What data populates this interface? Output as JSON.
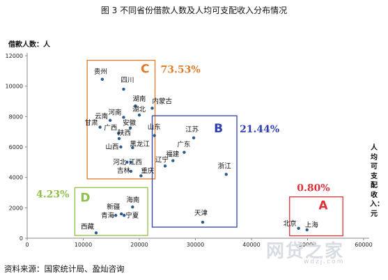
{
  "page": {
    "title": "图 3  不同省份借款人数及人均可支配收入分布情况",
    "source": "资料来源：国家统计局、盈灿咨询",
    "watermark": "网贷之家",
    "watermark_sub": "wdzj.com"
  },
  "chart_data": {
    "type": "scatter",
    "title": "图 3  不同省份借款人数及人均可支配收入分布情况",
    "ylabel": "借款人数：人",
    "xlabel": "人均可支配收入：元",
    "xlim": [
      0,
      60000
    ],
    "ylim": [
      0,
      12000
    ],
    "xticks": [
      0,
      10000,
      20000,
      30000,
      40000,
      50000,
      60000
    ],
    "yticks": [
      0,
      2000,
      4000,
      6000,
      8000,
      10000,
      12000
    ],
    "grid": false,
    "point_color": "#2e5c8a",
    "groups": [
      {
        "letter": "C",
        "share": "73.53%",
        "color": "#e07b2a",
        "x_range": [
          10700,
          22800
        ],
        "y_range": [
          3900,
          11700
        ]
      },
      {
        "letter": "B",
        "share": "21.44%",
        "color": "#2f3fb0",
        "x_range": [
          22300,
          37400
        ],
        "y_range": [
          730,
          8050
        ]
      },
      {
        "letter": "D",
        "share": "4.23%",
        "color": "#8fc04a",
        "x_range": [
          8500,
          21500
        ],
        "y_range": [
          180,
          3330
        ]
      },
      {
        "letter": "A",
        "share": "0.80%",
        "color": "#e0303a",
        "x_range": [
          46800,
          56300
        ],
        "y_range": [
          160,
          2720
        ]
      }
    ],
    "points": [
      {
        "name": "贵州",
        "x": 13400,
        "y": 10450
      },
      {
        "name": "四川",
        "x": 17200,
        "y": 9800
      },
      {
        "name": "湖南",
        "x": 19300,
        "y": 8700
      },
      {
        "name": "内蒙古",
        "x": 22300,
        "y": 8550
      },
      {
        "name": "云南",
        "x": 14800,
        "y": 7750
      },
      {
        "name": "河南",
        "x": 17200,
        "y": 7950
      },
      {
        "name": "湖北",
        "x": 20000,
        "y": 8100
      },
      {
        "name": "甘肃",
        "x": 13000,
        "y": 7300
      },
      {
        "name": "安徽",
        "x": 18400,
        "y": 7250
      },
      {
        "name": "广西",
        "x": 16300,
        "y": 6900
      },
      {
        "name": "陕西",
        "x": 16400,
        "y": 6550
      },
      {
        "name": "山东",
        "x": 22700,
        "y": 6750
      },
      {
        "name": "江苏",
        "x": 29700,
        "y": 6600
      },
      {
        "name": "广东",
        "x": 28000,
        "y": 5650
      },
      {
        "name": "福建",
        "x": 26000,
        "y": 5100
      },
      {
        "name": "辽宁",
        "x": 24600,
        "y": 4750
      },
      {
        "name": "山西",
        "x": 16700,
        "y": 6000
      },
      {
        "name": "黑龙江",
        "x": 18800,
        "y": 5950
      },
      {
        "name": "河北",
        "x": 17800,
        "y": 5000
      },
      {
        "name": "江西",
        "x": 18500,
        "y": 5000
      },
      {
        "name": "吉林",
        "x": 18500,
        "y": 4400
      },
      {
        "name": "重庆",
        "x": 20300,
        "y": 4100
      },
      {
        "name": "浙江",
        "x": 35500,
        "y": 4200
      },
      {
        "name": "海南",
        "x": 18800,
        "y": 2050
      },
      {
        "name": "新疆",
        "x": 16800,
        "y": 1600
      },
      {
        "name": "青海",
        "x": 15800,
        "y": 1500
      },
      {
        "name": "宁夏",
        "x": 17300,
        "y": 1500
      },
      {
        "name": "西藏",
        "x": 12300,
        "y": 350
      },
      {
        "name": "天津",
        "x": 31300,
        "y": 1050
      },
      {
        "name": "北京",
        "x": 48400,
        "y": 650
      },
      {
        "name": "上海",
        "x": 49900,
        "y": 550
      }
    ]
  }
}
